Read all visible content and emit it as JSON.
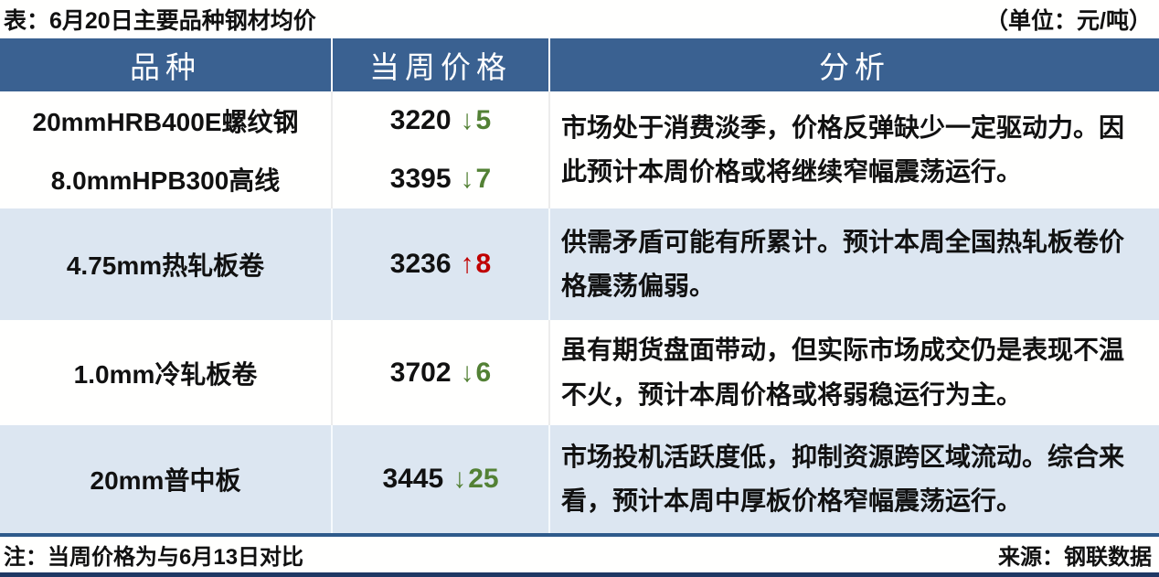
{
  "caption": {
    "title": "表：6月20日主要品种钢材均价",
    "unit": "（单位：元/吨）"
  },
  "table": {
    "headers": [
      "品种",
      "当周价格",
      "分析"
    ],
    "groups": [
      {
        "rows": [
          {
            "name": "20mmHRB400E螺纹钢",
            "price": "3220",
            "arrow": "↓",
            "delta": "5",
            "direction": "down"
          },
          {
            "name": "8.0mmHPB300高线",
            "price": "3395",
            "arrow": "↓",
            "delta": "7",
            "direction": "down"
          }
        ],
        "analysis": "市场处于消费淡季，价格反弹缺少一定驱动力。因此预计本周价格或将继续窄幅震荡运行。"
      },
      {
        "rows": [
          {
            "name": "4.75mm热轧板卷",
            "price": "3236",
            "arrow": "↑",
            "delta": "8",
            "direction": "up"
          }
        ],
        "analysis": "供需矛盾可能有所累计。预计本周全国热轧板卷价格震荡偏弱。"
      },
      {
        "rows": [
          {
            "name": "1.0mm冷轧板卷",
            "price": "3702",
            "arrow": "↓",
            "delta": "6",
            "direction": "down"
          }
        ],
        "analysis": "虽有期货盘面带动，但实际市场成交仍是表现不温不火，预计本周价格或将弱稳运行为主。"
      },
      {
        "rows": [
          {
            "name": "20mm普中板",
            "price": "3445",
            "arrow": "↓",
            "delta": "25",
            "direction": "down"
          }
        ],
        "analysis": "市场投机活跃度低，抑制资源跨区域流动。综合来看，预计本周中厚板价格窄幅震荡运行。"
      }
    ]
  },
  "footer": {
    "note": "注：当周价格为与6月13日对比",
    "source": "来源：钢联数据"
  },
  "colors": {
    "header_bg": "#3A6191",
    "band_bg": "#DCE6F1",
    "down_green": "#538135",
    "up_red": "#C00000",
    "table_border": "#2E5A8B",
    "bottom_bar": "#1F3864"
  }
}
